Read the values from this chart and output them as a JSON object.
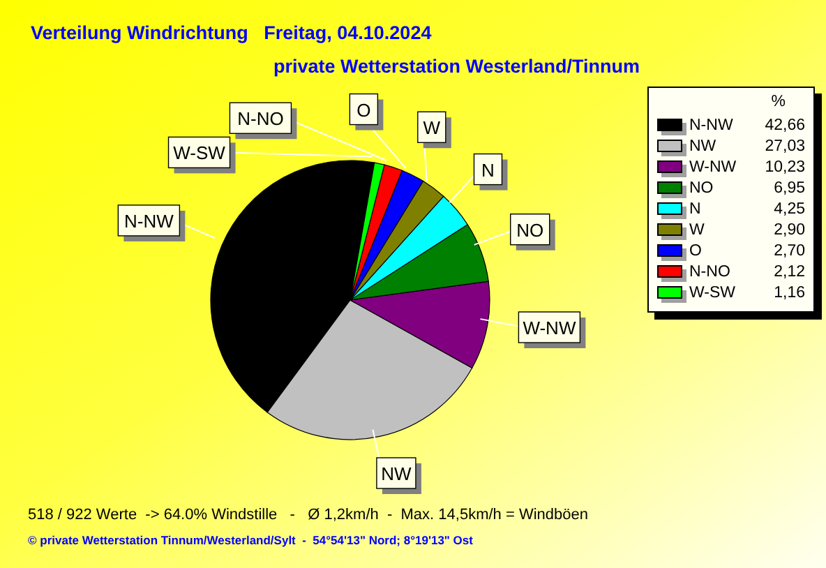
{
  "chart_data": {
    "type": "pie",
    "title": "Verteilung Windrichtung   Freitag, 04.10.2024",
    "subtitle": "private Wetterstation Westerland/Tinnum",
    "categories": [
      "N-NW",
      "NW",
      "W-NW",
      "NO",
      "N",
      "W",
      "O",
      "N-NO",
      "W-SW"
    ],
    "values": [
      42.66,
      27.03,
      10.23,
      6.95,
      4.25,
      2.9,
      2.7,
      2.12,
      1.16
    ],
    "value_labels": [
      "42,66",
      "27,03",
      "10,23",
      "6,95",
      "4,25",
      "2,90",
      "2,70",
      "2,12",
      "1,16"
    ],
    "colors": [
      "#000000",
      "#c0c0c0",
      "#800080",
      "#008000",
      "#00ffff",
      "#808000",
      "#0000ff",
      "#ff0000",
      "#00ff00"
    ],
    "legend": "top right",
    "legend_title": "%",
    "annotations": [
      "518 / 922 Werte  -> 64.0% Windstille   -   Ø 1,2km/h  -  Max. 14,5km/h = Windböen",
      "© private Wetterstation Tinnum/Westerland/Sylt  -  54°54'13\" Nord; 8°19'13\" Ost"
    ]
  }
}
